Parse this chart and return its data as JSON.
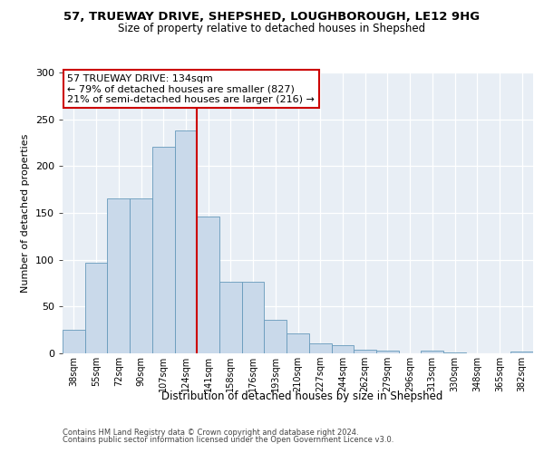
{
  "title1": "57, TRUEWAY DRIVE, SHEPSHED, LOUGHBOROUGH, LE12 9HG",
  "title2": "Size of property relative to detached houses in Shepshed",
  "xlabel": "Distribution of detached houses by size in Shepshed",
  "ylabel": "Number of detached properties",
  "footer1": "Contains HM Land Registry data © Crown copyright and database right 2024.",
  "footer2": "Contains public sector information licensed under the Open Government Licence v3.0.",
  "bin_labels": [
    "38sqm",
    "55sqm",
    "72sqm",
    "90sqm",
    "107sqm",
    "124sqm",
    "141sqm",
    "158sqm",
    "176sqm",
    "193sqm",
    "210sqm",
    "227sqm",
    "244sqm",
    "262sqm",
    "279sqm",
    "296sqm",
    "313sqm",
    "330sqm",
    "348sqm",
    "365sqm",
    "382sqm"
  ],
  "bar_values": [
    25,
    97,
    165,
    165,
    221,
    238,
    146,
    76,
    76,
    36,
    21,
    11,
    9,
    4,
    3,
    0,
    3,
    1,
    0,
    0,
    2
  ],
  "bar_color": "#c9d9ea",
  "bar_edge_color": "#6699bb",
  "annotation_line1": "57 TRUEWAY DRIVE: 134sqm",
  "annotation_line2": "← 79% of detached houses are smaller (827)",
  "annotation_line3": "21% of semi-detached houses are larger (216) →",
  "annotation_box_facecolor": "#ffffff",
  "annotation_box_edge_color": "#cc0000",
  "vline_color": "#cc0000",
  "vline_index": 6,
  "ylim_max": 300,
  "yticks": [
    0,
    50,
    100,
    150,
    200,
    250,
    300
  ],
  "plot_bg_color": "#e8eef5",
  "fig_bg_color": "#ffffff",
  "grid_color": "#ffffff",
  "spine_color": "#aaaaaa"
}
